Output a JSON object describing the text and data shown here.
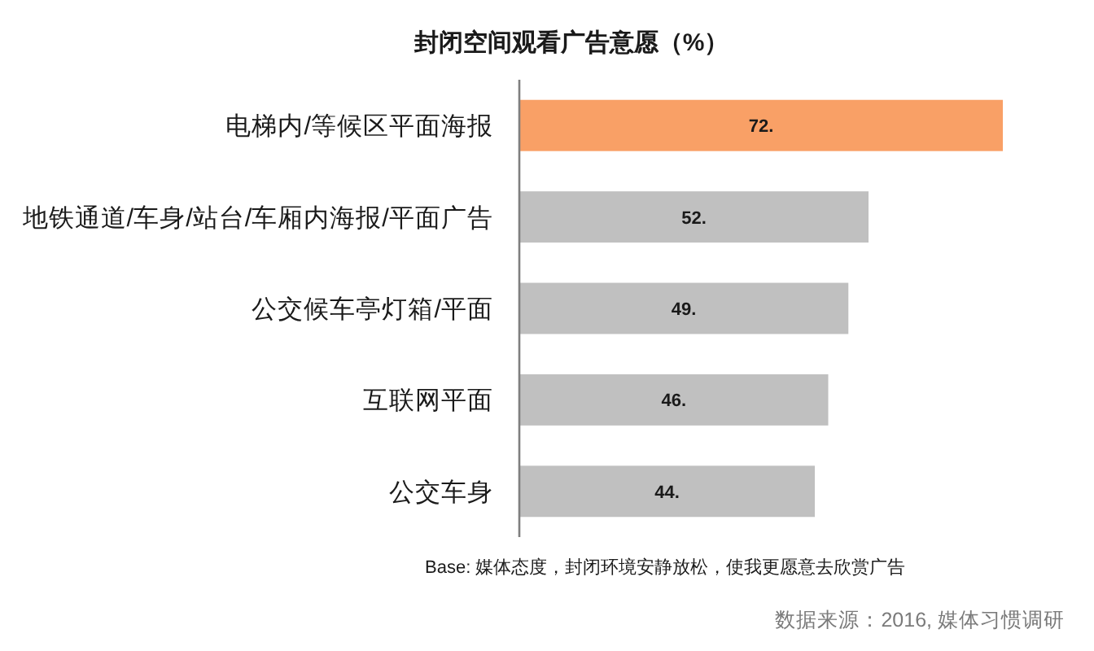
{
  "chart_data": {
    "type": "bar",
    "orientation": "horizontal",
    "title": "封闭空间观看广告意愿（%）",
    "categories": [
      "电梯内/等候区平面海报",
      "地铁通道/车身/站台/车厢内海报/平面广告",
      "公交候车亭灯箱/平面",
      "互联网平面",
      "公交车身"
    ],
    "values": [
      72,
      52,
      49,
      46,
      44
    ],
    "colors": [
      "#f9a066",
      "#c0c0c0",
      "#c0c0c0",
      "#c0c0c0",
      "#c0c0c0"
    ],
    "value_labels": [
      "72.",
      "52.",
      "49.",
      "46.",
      "44."
    ],
    "annotations": [
      "Base: 媒体态度，封闭环境安静放松，使我更愿意去欣赏广告",
      "数据来源：2016, 媒体习惯调研"
    ]
  }
}
